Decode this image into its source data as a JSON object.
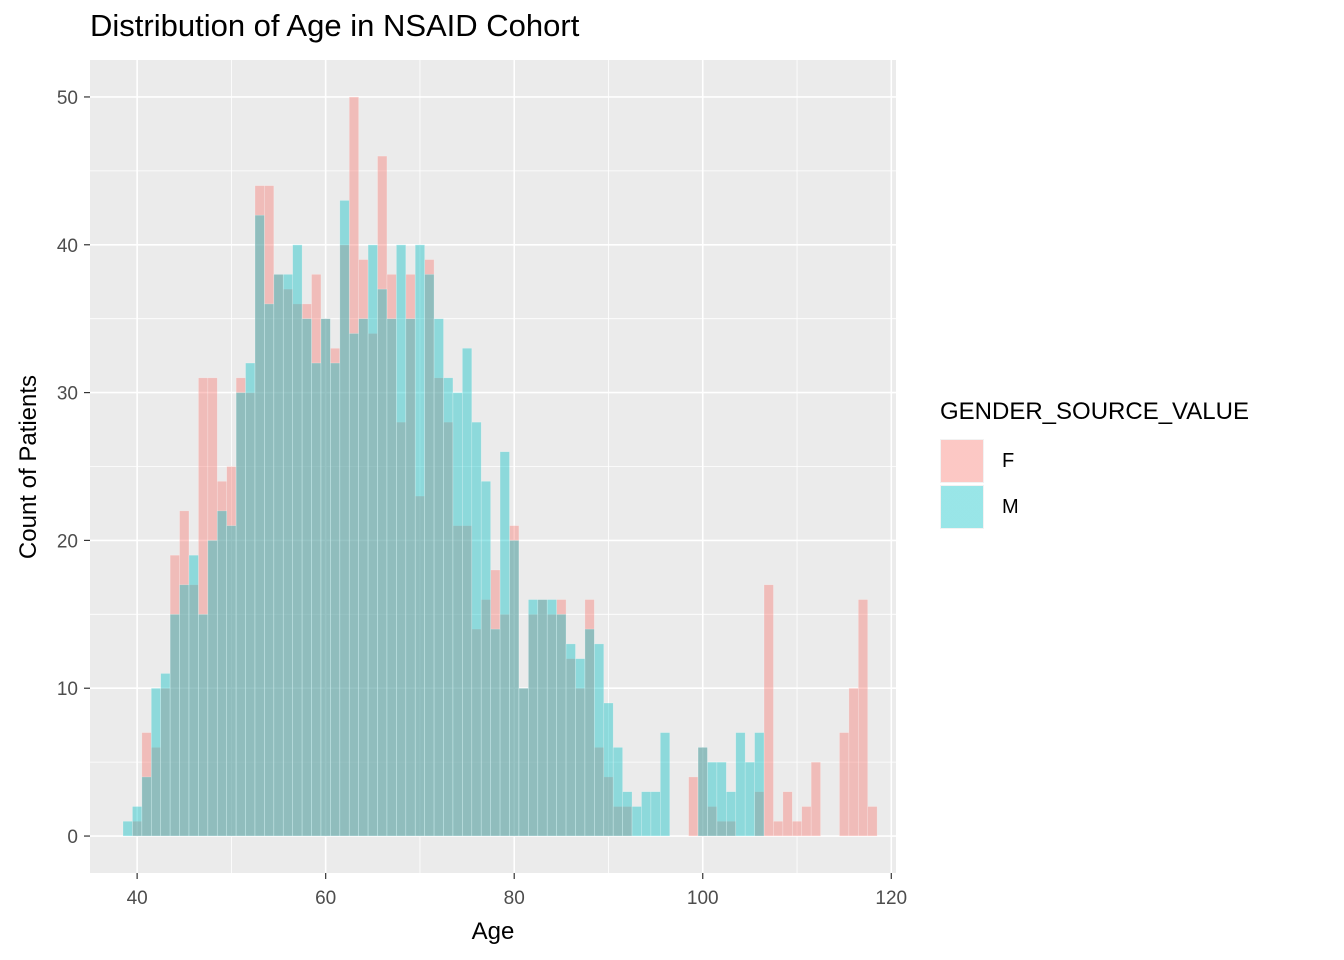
{
  "chart_data": {
    "type": "bar",
    "title": "Distribution of Age in NSAID Cohort",
    "xlabel": "Age",
    "ylabel": "Count of Patients",
    "xlim": [
      35,
      120.5
    ],
    "ylim": [
      -2.5,
      52.5
    ],
    "x_ticks": [
      40,
      60,
      80,
      100,
      120
    ],
    "y_ticks": [
      0,
      10,
      20,
      30,
      40,
      50
    ],
    "grid": true,
    "legend_position": "right",
    "legend_title": "GENDER_SOURCE_VALUE",
    "bin_start": 39,
    "bin_width": 1,
    "series": [
      {
        "name": "F",
        "color": "#F8766D",
        "opacity": 0.4,
        "values": [
          0,
          1,
          7,
          6,
          10,
          19,
          22,
          17,
          31,
          31,
          24,
          25,
          31,
          30,
          44,
          44,
          38,
          37,
          36,
          36,
          38,
          35,
          33,
          40,
          50,
          39,
          34,
          46,
          38,
          28,
          38,
          23,
          39,
          31,
          28,
          21,
          21,
          14,
          16,
          18,
          15,
          21,
          10,
          15,
          16,
          15,
          16,
          12,
          10,
          16,
          6,
          4,
          2,
          2,
          0,
          0,
          0,
          0,
          0,
          0,
          4,
          6,
          2,
          1,
          1,
          0,
          0,
          3,
          17,
          1,
          3,
          1,
          2,
          5,
          0,
          0,
          7,
          10,
          16,
          2
        ]
      },
      {
        "name": "M",
        "color": "#00BFC4",
        "opacity": 0.4,
        "values": [
          1,
          2,
          4,
          10,
          11,
          15,
          17,
          19,
          15,
          20,
          22,
          21,
          30,
          32,
          42,
          36,
          38,
          38,
          40,
          35,
          32,
          35,
          32,
          43,
          34,
          35,
          40,
          37,
          35,
          40,
          35,
          40,
          38,
          35,
          31,
          30,
          33,
          28,
          24,
          14,
          26,
          20,
          10,
          16,
          16,
          16,
          15,
          13,
          12,
          14,
          13,
          9,
          6,
          3,
          2,
          3,
          3,
          7,
          0,
          0,
          0,
          6,
          5,
          5,
          3,
          7,
          5,
          7,
          0,
          0,
          0,
          0,
          0,
          0,
          0,
          0,
          0,
          0,
          0,
          0
        ]
      }
    ]
  }
}
